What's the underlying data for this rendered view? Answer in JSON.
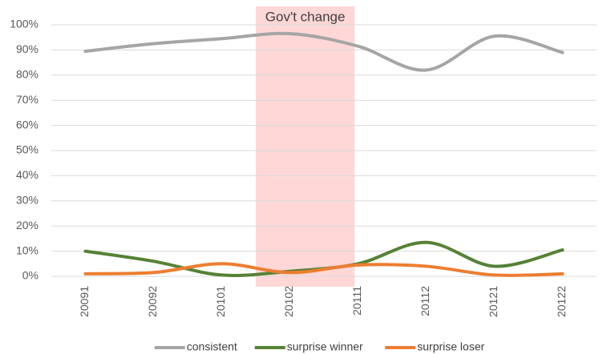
{
  "chart_data": {
    "type": "line",
    "annotation": "Gov't change",
    "categories": [
      "20091",
      "20092",
      "20101",
      "20102",
      "20111",
      "20112",
      "20121",
      "20122"
    ],
    "series": [
      {
        "name": "consistent",
        "color": "#a5a5a5",
        "values": [
          89.5,
          92.5,
          94.5,
          96.5,
          91.5,
          82,
          95.5,
          89
        ]
      },
      {
        "name": "surprise winner",
        "color": "#548235",
        "values": [
          10,
          6,
          0.5,
          2,
          5,
          13.5,
          4,
          10.5
        ]
      },
      {
        "name": "surprise loser",
        "color": "#ed7d31",
        "values": [
          1,
          1.5,
          5,
          1.5,
          4.5,
          4,
          0.5,
          1
        ]
      }
    ],
    "ylim": [
      0,
      100
    ],
    "yticks": [
      {
        "value": 0,
        "label": "0%"
      },
      {
        "value": 10,
        "label": "10%"
      },
      {
        "value": 20,
        "label": "20%"
      },
      {
        "value": 30,
        "label": "30%"
      },
      {
        "value": 40,
        "label": "40%"
      },
      {
        "value": 50,
        "label": "50%"
      },
      {
        "value": 60,
        "label": "60%"
      },
      {
        "value": 70,
        "label": "70%"
      },
      {
        "value": 80,
        "label": "80%"
      },
      {
        "value": 90,
        "label": "90%"
      },
      {
        "value": 100,
        "label": "100%"
      }
    ],
    "grid": true,
    "legend": "bottom"
  }
}
